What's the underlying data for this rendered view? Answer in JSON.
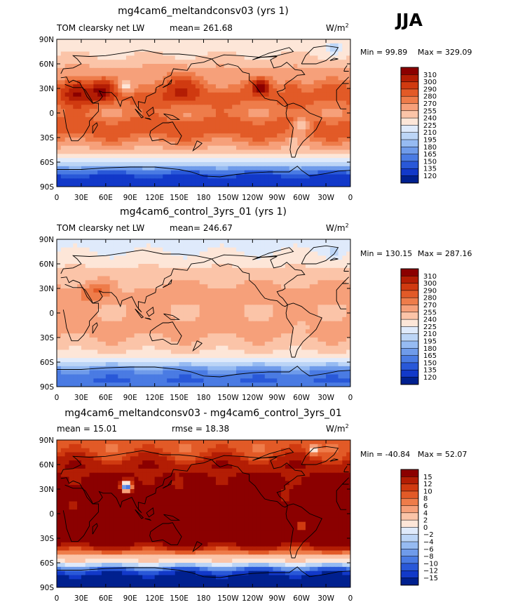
{
  "season": "JJA",
  "chart_data": [
    {
      "type": "heatmap",
      "title": "mg4cam6_meltandconsv03 (yrs 1)",
      "left_label": "TOM clearsky net LW",
      "center_label": "mean= 261.68",
      "units": "W/m",
      "units_sup": "2",
      "min_text": "Min =   99.89",
      "max_text": "Max =  329.09",
      "xticks": [
        "0",
        "30E",
        "60E",
        "90E",
        "120E",
        "150E",
        "180",
        "150W",
        "120W",
        "90W",
        "60W",
        "30W",
        "0"
      ],
      "yticks": [
        "90N",
        "60N",
        "30N",
        "0",
        "30S",
        "60S",
        "90S"
      ],
      "colorbar": {
        "levels": [
          "310",
          "300",
          "290",
          "280",
          "270",
          "255",
          "240",
          "225",
          "210",
          "195",
          "180",
          "165",
          "150",
          "135",
          "120"
        ],
        "colors": [
          "#8b0000",
          "#b31d04",
          "#d03a10",
          "#e25a27",
          "#ee7c4a",
          "#f6a07a",
          "#fbc4a8",
          "#fde6d8",
          "#dfeafb",
          "#bcd5f6",
          "#96bbf2",
          "#6f9bea",
          "#4a7be3",
          "#2958d8",
          "#1239c9",
          "#00208f"
        ]
      },
      "field": {
        "base": 250,
        "rows": [
          {
            "lat": 80,
            "v": 230
          },
          {
            "lat": 70,
            "v": 240
          },
          {
            "lat": 60,
            "v": 250
          },
          {
            "lat": 50,
            "v": 258
          },
          {
            "lat": 40,
            "v": 268
          },
          {
            "lat": 30,
            "v": 278
          },
          {
            "lat": 20,
            "v": 285
          },
          {
            "lat": 10,
            "v": 278
          },
          {
            "lat": 0,
            "v": 272
          },
          {
            "lat": -10,
            "v": 282
          },
          {
            "lat": -20,
            "v": 285
          },
          {
            "lat": -30,
            "v": 278
          },
          {
            "lat": -40,
            "v": 262
          },
          {
            "lat": -50,
            "v": 240
          },
          {
            "lat": -60,
            "v": 215
          },
          {
            "lat": -70,
            "v": 160
          },
          {
            "lat": -80,
            "v": 125
          }
        ],
        "hotspots": [
          {
            "lon": 25,
            "lat": 28,
            "dv": 35,
            "r": 18
          },
          {
            "lon": 55,
            "lat": 28,
            "dv": 30,
            "r": 14
          },
          {
            "lon": 85,
            "lat": 33,
            "dv": -45,
            "r": 8
          },
          {
            "lon": 250,
            "lat": 32,
            "dv": 35,
            "r": 10
          },
          {
            "lon": 290,
            "lat": 33,
            "dv": 20,
            "r": 9
          },
          {
            "lon": 150,
            "lat": 33,
            "dv": 18,
            "r": 25
          },
          {
            "lon": 300,
            "lat": -15,
            "dv": -35,
            "r": 10
          },
          {
            "lon": 290,
            "lat": -35,
            "dv": -25,
            "r": 5
          },
          {
            "lon": 340,
            "lat": 78,
            "dv": -35,
            "r": 7
          }
        ]
      }
    },
    {
      "type": "heatmap",
      "title": "mg4cam6_control_3yrs_01 (yrs 1)",
      "left_label": "TOM clearsky net LW",
      "center_label": "mean= 246.67",
      "units": "W/m",
      "units_sup": "2",
      "min_text": "Min = 130.15",
      "max_text": "Max = 287.16",
      "xticks": [
        "0",
        "30E",
        "60E",
        "90E",
        "120E",
        "150E",
        "180",
        "150W",
        "120W",
        "90W",
        "60W",
        "30W",
        "0"
      ],
      "yticks": [
        "90N",
        "60N",
        "30N",
        "0",
        "30S",
        "60S",
        "90S"
      ],
      "colorbar": {
        "levels": [
          "310",
          "300",
          "290",
          "280",
          "270",
          "255",
          "240",
          "225",
          "210",
          "195",
          "180",
          "165",
          "150",
          "135",
          "120"
        ],
        "colors": [
          "#8b0000",
          "#b31d04",
          "#d03a10",
          "#e25a27",
          "#ee7c4a",
          "#f6a07a",
          "#fbc4a8",
          "#fde6d8",
          "#dfeafb",
          "#bcd5f6",
          "#96bbf2",
          "#6f9bea",
          "#4a7be3",
          "#2958d8",
          "#1239c9",
          "#00208f"
        ]
      },
      "field": {
        "base": 240,
        "rows": [
          {
            "lat": 80,
            "v": 222
          },
          {
            "lat": 70,
            "v": 230
          },
          {
            "lat": 60,
            "v": 236
          },
          {
            "lat": 50,
            "v": 243
          },
          {
            "lat": 40,
            "v": 250
          },
          {
            "lat": 30,
            "v": 260
          },
          {
            "lat": 20,
            "v": 262
          },
          {
            "lat": 10,
            "v": 258
          },
          {
            "lat": 0,
            "v": 256
          },
          {
            "lat": -10,
            "v": 260
          },
          {
            "lat": -20,
            "v": 262
          },
          {
            "lat": -30,
            "v": 256
          },
          {
            "lat": -40,
            "v": 247
          },
          {
            "lat": -50,
            "v": 236
          },
          {
            "lat": -60,
            "v": 210
          },
          {
            "lat": -70,
            "v": 168
          },
          {
            "lat": -80,
            "v": 150
          }
        ],
        "hotspots": [
          {
            "lon": 40,
            "lat": 25,
            "dv": 18,
            "r": 15
          },
          {
            "lon": 55,
            "lat": 30,
            "dv": 12,
            "r": 10
          },
          {
            "lon": 85,
            "lat": 33,
            "dv": -20,
            "r": 8
          },
          {
            "lon": 300,
            "lat": -15,
            "dv": -15,
            "r": 9
          },
          {
            "lon": 340,
            "lat": 75,
            "dv": -20,
            "r": 8
          }
        ]
      }
    },
    {
      "type": "heatmap",
      "title": "mg4cam6_meltandconsv03 - mg4cam6_control_3yrs_01",
      "left_label": "mean =   15.01",
      "center_label": "rmse =   18.38",
      "units": "W/m",
      "units_sup": "2",
      "min_text": "Min = -40.84",
      "max_text": "Max =  52.07",
      "xticks": [
        "0",
        "30E",
        "60E",
        "90E",
        "120E",
        "150E",
        "180",
        "150W",
        "120W",
        "90W",
        "60W",
        "30W",
        "0"
      ],
      "yticks": [
        "90N",
        "60N",
        "30N",
        "0",
        "30S",
        "60S",
        "90S"
      ],
      "colorbar": {
        "levels": [
          "15",
          "12",
          "10",
          "8",
          "6",
          "4",
          "2",
          "0",
          "−2",
          "−4",
          "−6",
          "−8",
          "−10",
          "−12",
          "−15"
        ],
        "colors": [
          "#8b0000",
          "#b31d04",
          "#d03a10",
          "#e25a27",
          "#ee7c4a",
          "#f6a07a",
          "#fbc4a8",
          "#fde6d8",
          "#dfeafb",
          "#bcd5f6",
          "#96bbf2",
          "#6f9bea",
          "#4a7be3",
          "#2958d8",
          "#1239c9",
          "#00208f"
        ]
      },
      "field": {
        "base": 12,
        "rows": [
          {
            "lat": 80,
            "v": 9
          },
          {
            "lat": 70,
            "v": 11
          },
          {
            "lat": 60,
            "v": 14
          },
          {
            "lat": 50,
            "v": 15
          },
          {
            "lat": 40,
            "v": 17
          },
          {
            "lat": 30,
            "v": 18
          },
          {
            "lat": 20,
            "v": 22
          },
          {
            "lat": 10,
            "v": 20
          },
          {
            "lat": 0,
            "v": 17
          },
          {
            "lat": -10,
            "v": 22
          },
          {
            "lat": -20,
            "v": 23
          },
          {
            "lat": -30,
            "v": 21
          },
          {
            "lat": -40,
            "v": 14
          },
          {
            "lat": -50,
            "v": 5
          },
          {
            "lat": -60,
            "v": 0
          },
          {
            "lat": -70,
            "v": -12
          },
          {
            "lat": -80,
            "v": -18
          }
        ],
        "hotspots": [
          {
            "lon": 85,
            "lat": 33,
            "dv": -30,
            "r": 7
          },
          {
            "lon": 150,
            "lat": 35,
            "dv": -7,
            "r": 10
          },
          {
            "lon": 280,
            "lat": 20,
            "dv": -8,
            "r": 9
          },
          {
            "lon": 300,
            "lat": -15,
            "dv": -15,
            "r": 8
          },
          {
            "lon": 20,
            "lat": 10,
            "dv": -10,
            "r": 6
          },
          {
            "lon": 315,
            "lat": 78,
            "dv": -10,
            "r": 6
          }
        ]
      }
    }
  ]
}
